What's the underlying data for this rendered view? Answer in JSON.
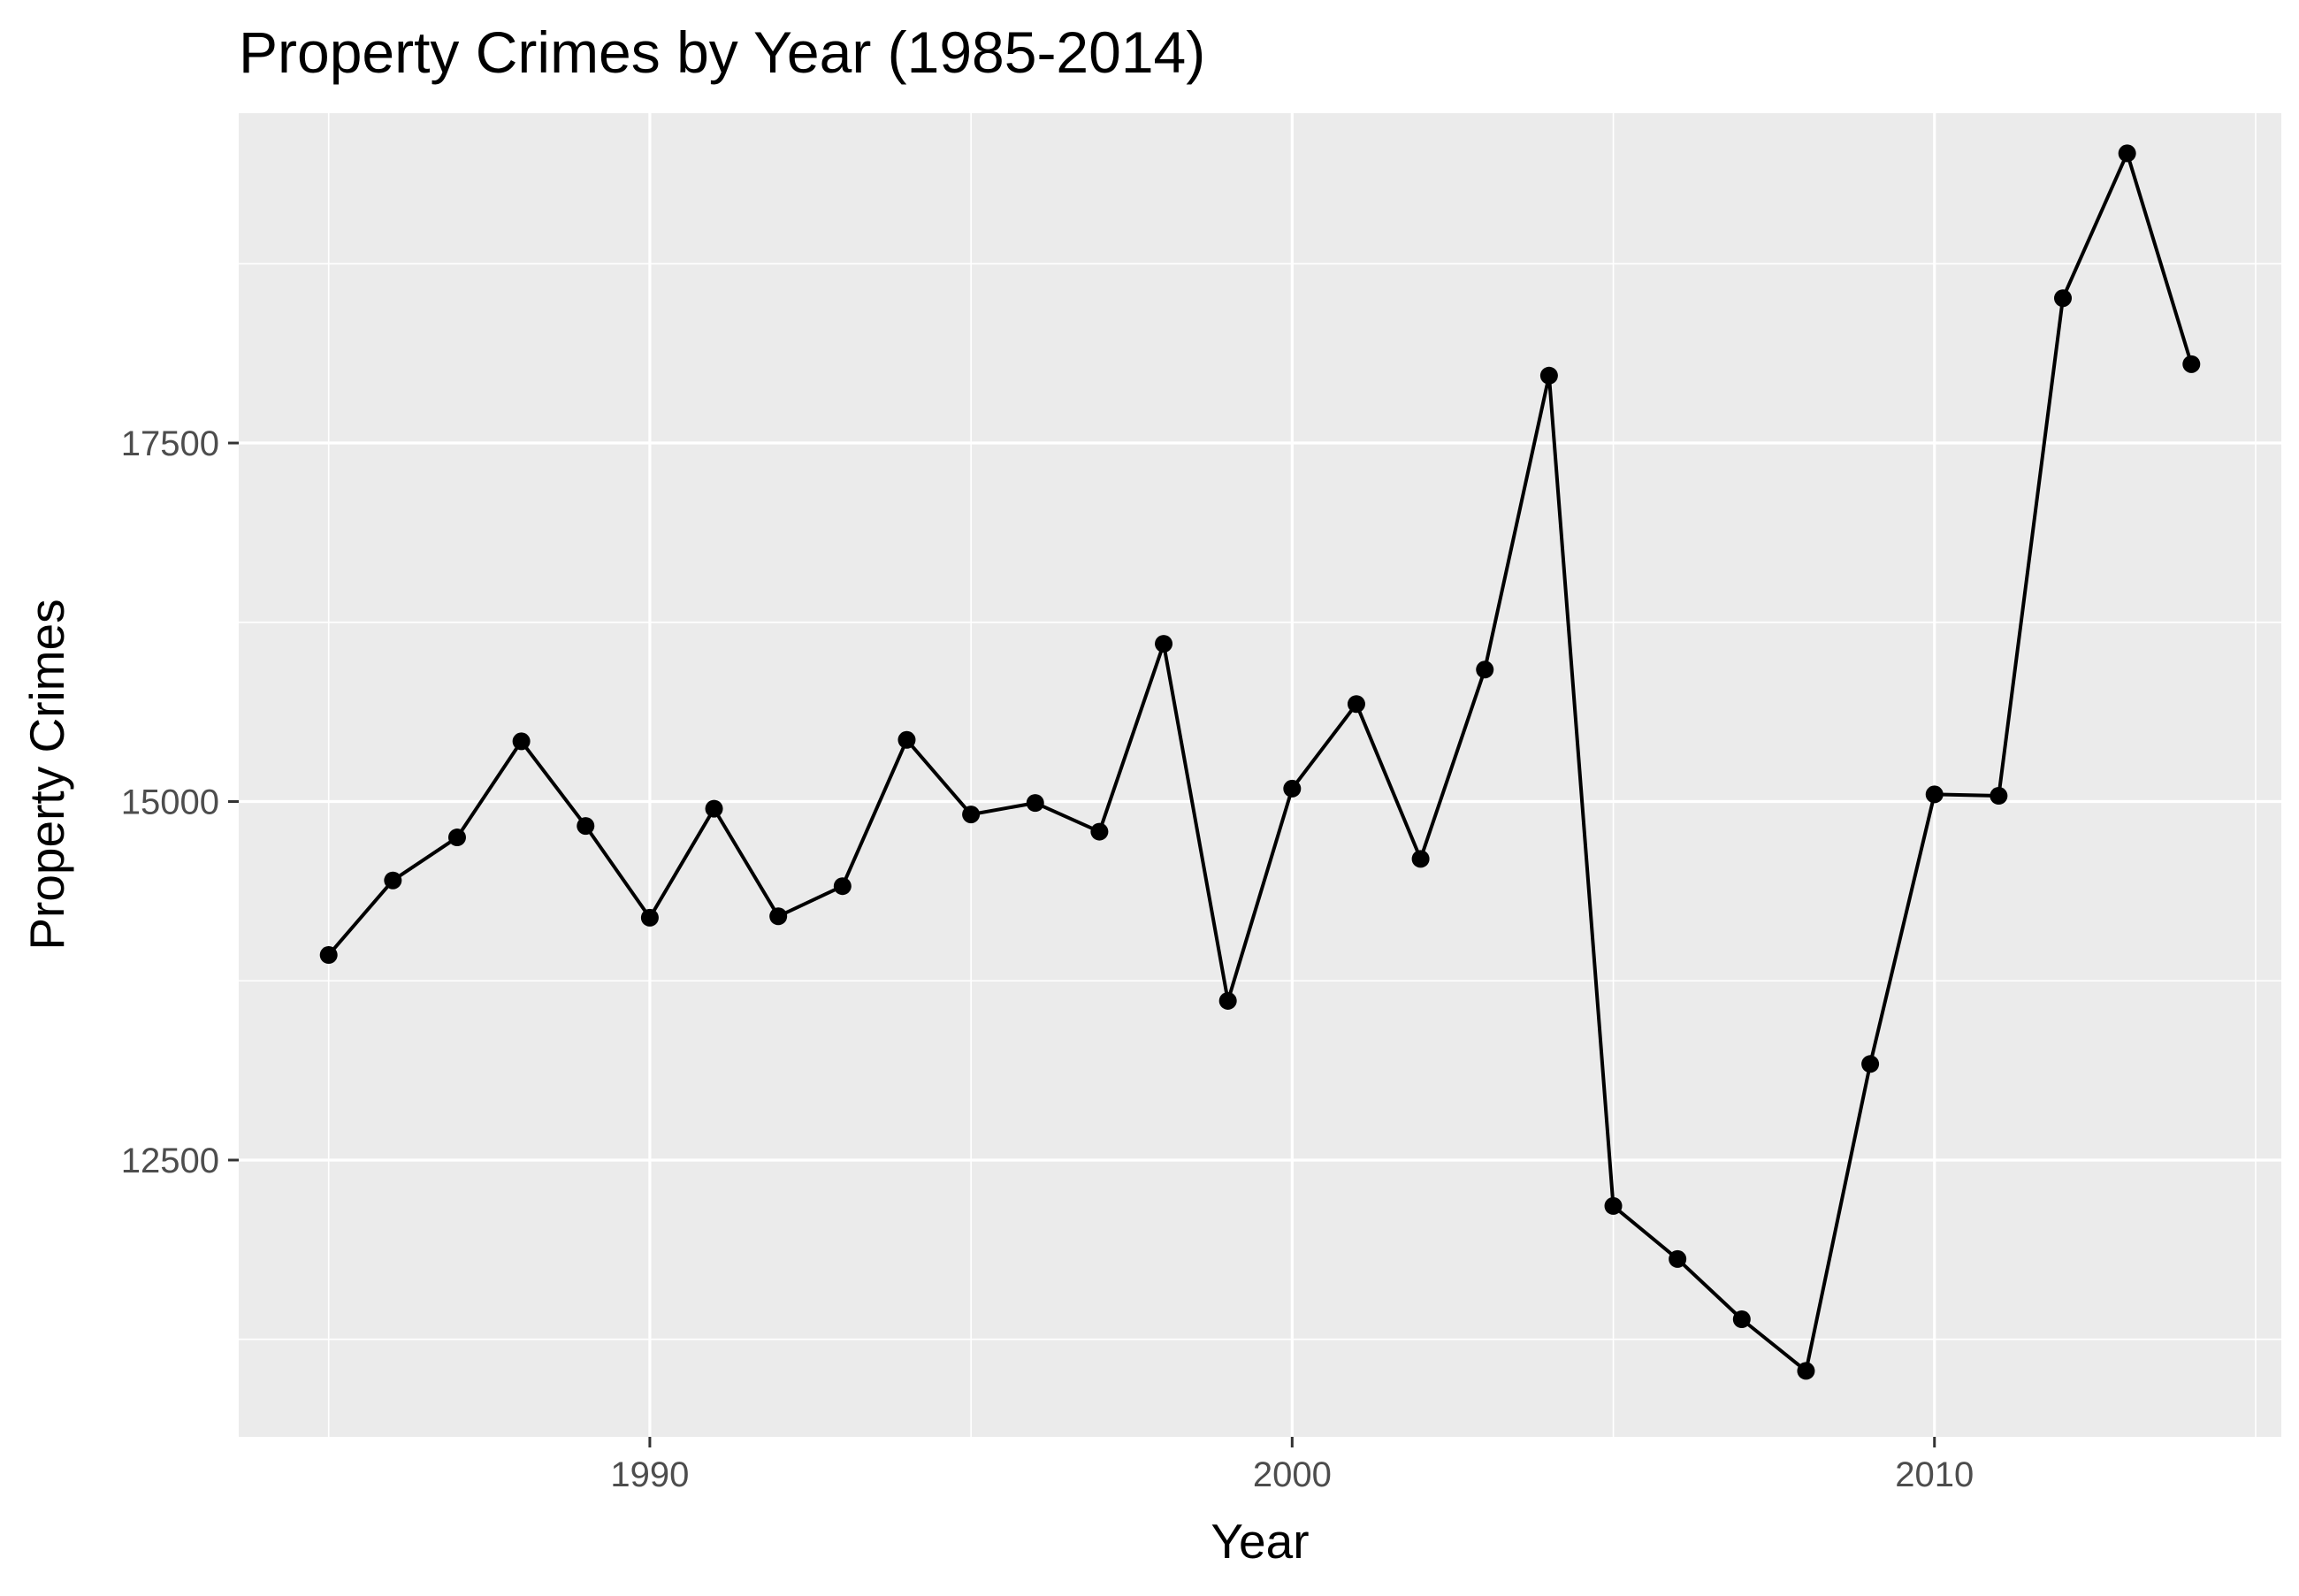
{
  "chart_data": {
    "type": "line",
    "title": "Property Crimes by Year (1985-2014)",
    "xlabel": "Year",
    "ylabel": "Property Crimes",
    "xlim": [
      1983.6,
      2015.4
    ],
    "ylim": [
      10570,
      19800
    ],
    "x_ticks": [
      1990,
      2000,
      2010
    ],
    "x_tick_labels": [
      "1990",
      "2000",
      "2010"
    ],
    "x_minor_ticks": [
      1985,
      1995,
      2005,
      2015
    ],
    "y_ticks": [
      12500,
      15000,
      17500
    ],
    "y_tick_labels": [
      "12500",
      "15000",
      "17500"
    ],
    "y_minor_ticks": [
      11250,
      13750,
      16250,
      18750
    ],
    "grid": true,
    "legend": "none",
    "colors": {
      "panel": "#ebebeb",
      "grid": "#ffffff",
      "line": "#000000",
      "tick_text": "#4d4d4d"
    },
    "series": [
      {
        "x": [
          1985,
          1986,
          1987,
          1988,
          1989,
          1990,
          1991,
          1992,
          1993,
          1994,
          1995,
          1996,
          1997,
          1998,
          1999,
          2000,
          2001,
          2002,
          2003,
          2004,
          2005,
          2006,
          2007,
          2008,
          2009,
          2010,
          2011,
          2012,
          2013,
          2014
        ],
        "values": [
          13930,
          14450,
          14750,
          15420,
          14830,
          14190,
          14950,
          14200,
          14410,
          15430,
          14910,
          14990,
          14790,
          16100,
          13610,
          15090,
          15680,
          14600,
          15920,
          17970,
          12180,
          11810,
          11390,
          11030,
          13170,
          15050,
          15040,
          18510,
          19520,
          18050
        ]
      }
    ]
  }
}
